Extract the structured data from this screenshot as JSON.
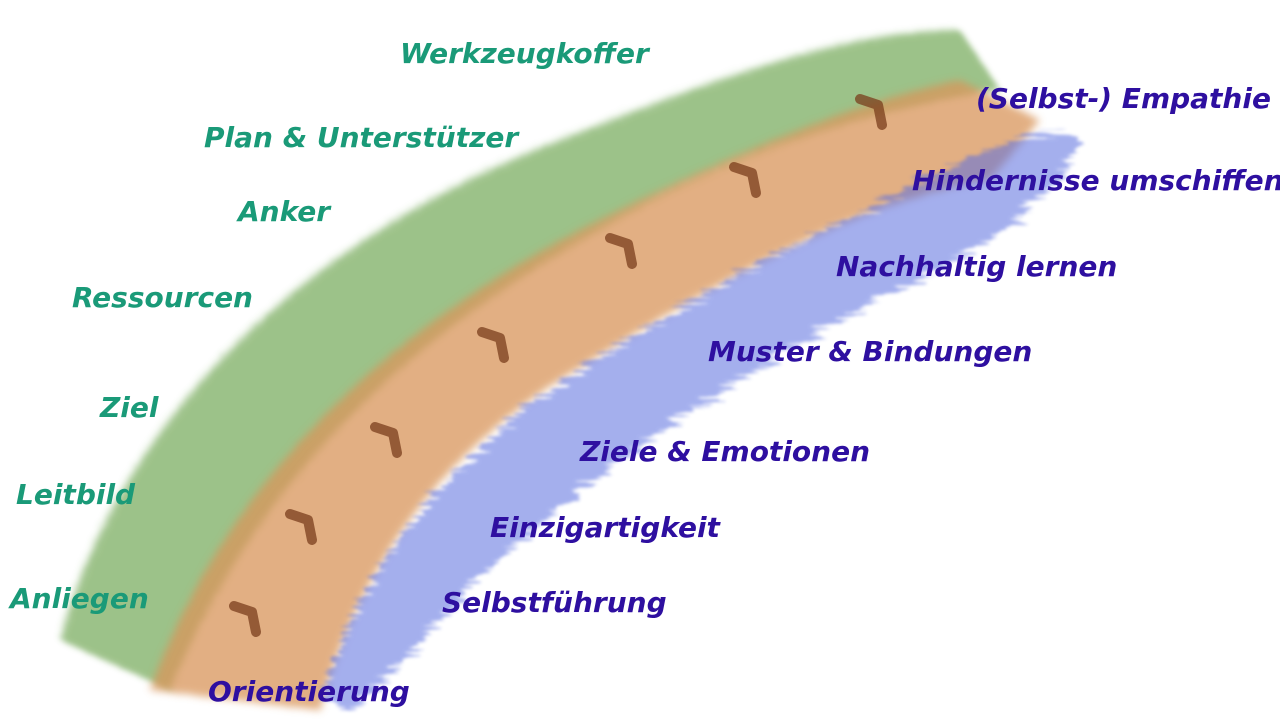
{
  "colors": {
    "green_label": "#1a9a78",
    "blue_label": "#2e0fa0",
    "moss": "#5c9a3a",
    "sand": "#d9955a",
    "water": "#5a6ee0",
    "footprint": "#7a3e1c"
  },
  "left_labels": [
    "Werkzeugkoffer",
    "Plan & Unterstützer",
    "Anker",
    "Ressourcen",
    "Ziel",
    "Leitbild",
    "Anliegen"
  ],
  "right_labels": [
    "(Selbst-) Empathie",
    "Hindernisse umschiffen",
    "Nachhaltig lernen",
    "Muster & Bindungen",
    "Ziele & Emotionen",
    "Einzigartigkeit",
    "Selbstführung",
    "Orientierung"
  ],
  "icons": {
    "footprints": "chevron-footprint-icon",
    "count": 7
  }
}
